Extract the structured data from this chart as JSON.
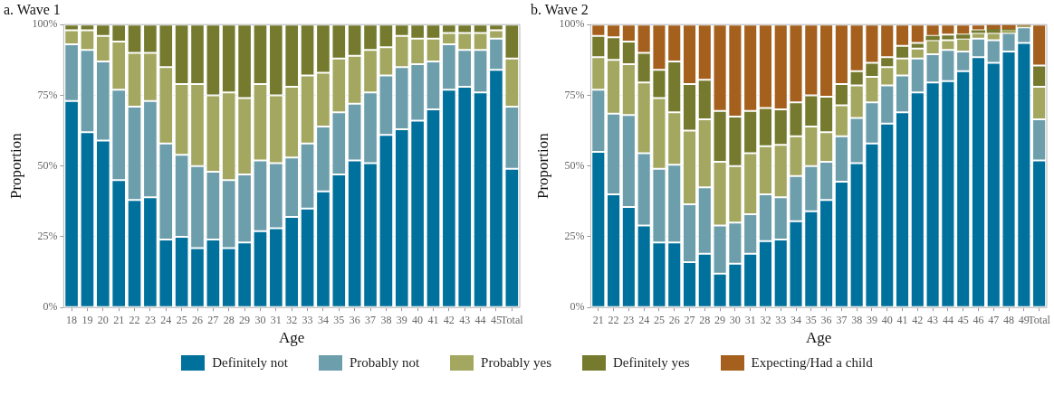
{
  "chart_data": [
    {
      "type": "bar",
      "title": "a. Wave 1",
      "xlabel": "Age",
      "ylabel": "Proportion",
      "stacked": true,
      "grid": true,
      "legend": "bottom",
      "categories": [
        "18",
        "19",
        "20",
        "21",
        "22",
        "23",
        "24",
        "25",
        "26",
        "27",
        "28",
        "29",
        "30",
        "31",
        "32",
        "33",
        "34",
        "35",
        "36",
        "37",
        "38",
        "39",
        "40",
        "41",
        "42",
        "43",
        "44",
        "45",
        "Total"
      ],
      "ylim": [
        0,
        100
      ],
      "yticks": [
        {
          "value": 0,
          "label": "0%"
        },
        {
          "value": 25,
          "label": "25%"
        },
        {
          "value": 50,
          "label": "50%"
        },
        {
          "value": 75,
          "label": "75%"
        },
        {
          "value": 100,
          "label": "100%"
        }
      ],
      "series": [
        {
          "name": "Definitely not",
          "color": "#00719c",
          "values": [
            73,
            62,
            59,
            45,
            38,
            39,
            24,
            25,
            21,
            24,
            21,
            23,
            27,
            28,
            32,
            35,
            41,
            47,
            52,
            51,
            61,
            63,
            66,
            70,
            77,
            78,
            76,
            84,
            49
          ]
        },
        {
          "name": "Probably not",
          "color": "#6c9eac",
          "values": [
            20,
            29,
            28,
            32,
            33,
            34,
            34,
            29,
            29,
            24,
            24,
            24,
            25,
            23,
            21,
            23,
            23,
            22,
            20,
            25,
            21,
            22,
            20,
            17,
            16,
            13,
            15,
            11,
            22
          ]
        },
        {
          "name": "Probably yes",
          "color": "#a3a75f",
          "values": [
            5,
            7,
            9,
            17,
            19,
            17,
            27,
            25,
            29,
            27,
            31,
            27,
            27,
            24,
            25,
            24,
            19,
            19,
            17,
            15,
            10,
            11,
            9,
            8,
            4,
            6,
            6,
            3,
            17
          ]
        },
        {
          "name": "Definitely yes",
          "color": "#757a2e",
          "values": [
            2,
            2,
            4,
            6,
            10,
            10,
            15,
            21,
            21,
            25,
            24,
            26,
            21,
            25,
            22,
            18,
            17,
            12,
            11,
            9,
            8,
            4,
            5,
            5,
            3,
            3,
            3,
            2,
            12
          ]
        }
      ]
    },
    {
      "type": "bar",
      "title": "b. Wave 2",
      "xlabel": "Age",
      "ylabel": "Proportion",
      "stacked": true,
      "grid": true,
      "legend": "bottom",
      "categories": [
        "21",
        "22",
        "23",
        "24",
        "25",
        "26",
        "27",
        "28",
        "29",
        "30",
        "31",
        "32",
        "33",
        "34",
        "35",
        "36",
        "37",
        "38",
        "39",
        "40",
        "41",
        "42",
        "43",
        "44",
        "45",
        "46",
        "47",
        "48",
        "49",
        "Total"
      ],
      "ylim": [
        0,
        100
      ],
      "yticks": [
        {
          "value": 0,
          "label": "0%"
        },
        {
          "value": 25,
          "label": "25%"
        },
        {
          "value": 50,
          "label": "50%"
        },
        {
          "value": 75,
          "label": "75%"
        },
        {
          "value": 100,
          "label": "100%"
        }
      ],
      "series": [
        {
          "name": "Definitely not",
          "color": "#00719c",
          "values": [
            55,
            40,
            35.5,
            29,
            23,
            23,
            16,
            19,
            12,
            15.5,
            19,
            23.5,
            24,
            30.5,
            34,
            38,
            44.5,
            51,
            58,
            65,
            69,
            76,
            79.5,
            80,
            83.5,
            88.5,
            86.5,
            90.5,
            93.5,
            52
          ]
        },
        {
          "name": "Probably not",
          "color": "#6c9eac",
          "values": [
            22,
            28.5,
            32.5,
            25.5,
            26,
            27.5,
            20.5,
            23.5,
            17,
            14.5,
            14,
            16.5,
            15,
            16,
            16,
            13.5,
            16,
            16,
            14.5,
            13.5,
            13,
            12,
            10,
            11,
            7,
            6.5,
            8,
            6.5,
            5.5,
            14.5
          ]
        },
        {
          "name": "Probably yes",
          "color": "#a3a75f",
          "values": [
            11.5,
            19,
            18,
            25,
            25,
            18.5,
            26,
            24,
            22.5,
            20,
            21.5,
            17,
            18.5,
            14,
            14,
            10.5,
            11,
            11.5,
            9,
            6.5,
            6,
            3.5,
            5,
            3.5,
            4.5,
            2,
            2.5,
            1,
            0.5,
            11.5
          ]
        },
        {
          "name": "Definitely yes",
          "color": "#757a2e",
          "values": [
            7.5,
            8,
            8,
            10.5,
            10,
            18,
            16.5,
            14,
            18,
            17.5,
            15,
            13.5,
            12.5,
            12,
            11,
            12.5,
            7.5,
            5,
            5,
            3.5,
            4.5,
            2,
            1.5,
            2,
            1.5,
            1,
            1.5,
            0.5,
            0,
            7.5
          ]
        },
        {
          "name": "Expecting/Had a child",
          "color": "#a5601e",
          "values": [
            4,
            4.5,
            6,
            10,
            16,
            13,
            21,
            19.5,
            30.5,
            32.5,
            30.5,
            29.5,
            30,
            27.5,
            25,
            25.5,
            21,
            16.5,
            13.5,
            11.5,
            7.5,
            6.5,
            4,
            3.5,
            3.5,
            2,
            1.5,
            1.5,
            0.5,
            14.5
          ]
        }
      ]
    }
  ]
}
